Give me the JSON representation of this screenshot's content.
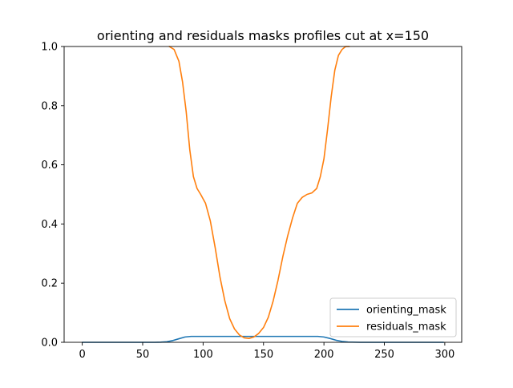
{
  "chart_data": {
    "type": "line",
    "title": "orienting and residuals masks profiles cut at x=150",
    "xlabel": "",
    "ylabel": "",
    "xlim": [
      -15,
      314
    ],
    "ylim": [
      0,
      1
    ],
    "xticks": [
      0,
      50,
      100,
      150,
      200,
      250,
      300
    ],
    "yticks": [
      0.0,
      0.2,
      0.4,
      0.6,
      0.8,
      1.0
    ],
    "xtick_labels": [
      "0",
      "50",
      "100",
      "150",
      "200",
      "250",
      "300"
    ],
    "ytick_labels": [
      "0.0",
      "0.2",
      "0.4",
      "0.6",
      "0.8",
      "1.0"
    ],
    "grid": false,
    "legend_position": "lower right",
    "series": [
      {
        "name": "orienting_mask",
        "color": "#1f77b4",
        "x": [
          0,
          60,
          65,
          70,
          75,
          80,
          85,
          90,
          100,
          150,
          190,
          195,
          200,
          205,
          210,
          215,
          220,
          230,
          299
        ],
        "y": [
          0,
          0,
          0.0005,
          0.002,
          0.006,
          0.012,
          0.018,
          0.02,
          0.02,
          0.02,
          0.02,
          0.02,
          0.018,
          0.013,
          0.007,
          0.003,
          0.001,
          0,
          0
        ]
      },
      {
        "name": "residuals_mask",
        "color": "#ff7f0e",
        "x": [
          72,
          76,
          80,
          83,
          86,
          89,
          92,
          95,
          98,
          102,
          106,
          110,
          114,
          118,
          122,
          126,
          130,
          134,
          138,
          142,
          146,
          150,
          154,
          158,
          162,
          166,
          170,
          174,
          178,
          182,
          186,
          190,
          194,
          197,
          200,
          203,
          206,
          209,
          212,
          215,
          218,
          221
        ],
        "y": [
          1.0,
          0.99,
          0.95,
          0.88,
          0.78,
          0.65,
          0.56,
          0.52,
          0.5,
          0.47,
          0.41,
          0.32,
          0.22,
          0.14,
          0.08,
          0.045,
          0.025,
          0.015,
          0.013,
          0.018,
          0.03,
          0.05,
          0.085,
          0.14,
          0.21,
          0.29,
          0.36,
          0.42,
          0.47,
          0.49,
          0.5,
          0.505,
          0.52,
          0.56,
          0.62,
          0.72,
          0.83,
          0.92,
          0.97,
          0.99,
          1.0,
          1.0
        ]
      }
    ]
  }
}
